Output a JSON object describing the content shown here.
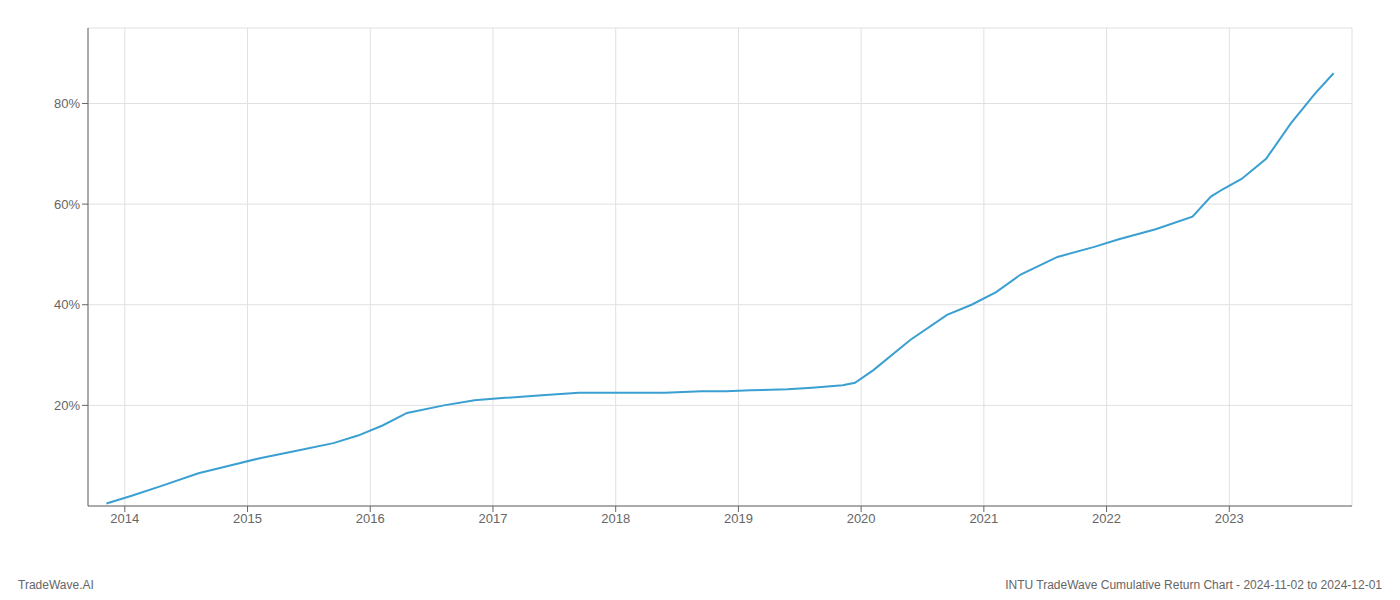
{
  "chart_data": {
    "type": "line",
    "x": [
      2013.85,
      2014.05,
      2014.3,
      2014.6,
      2014.85,
      2015.1,
      2015.4,
      2015.7,
      2015.9,
      2016.1,
      2016.3,
      2016.6,
      2016.85,
      2017.1,
      2017.4,
      2017.7,
      2017.9,
      2018.1,
      2018.4,
      2018.7,
      2018.9,
      2019.1,
      2019.4,
      2019.6,
      2019.85,
      2019.95,
      2020.1,
      2020.4,
      2020.7,
      2020.9,
      2021.1,
      2021.3,
      2021.6,
      2021.9,
      2022.1,
      2022.4,
      2022.7,
      2022.85,
      2022.95,
      2023.1,
      2023.3,
      2023.5,
      2023.7,
      2023.85
    ],
    "values": [
      0.5,
      2.0,
      4.0,
      6.5,
      8.0,
      9.5,
      11.0,
      12.5,
      14.0,
      16.0,
      18.5,
      20.0,
      21.0,
      21.5,
      22.0,
      22.5,
      22.5,
      22.5,
      22.5,
      22.8,
      22.8,
      23.0,
      23.2,
      23.5,
      24.0,
      24.5,
      27.0,
      33.0,
      38.0,
      40.0,
      42.5,
      46.0,
      49.5,
      51.5,
      53.0,
      55.0,
      57.5,
      61.5,
      63.0,
      65.0,
      69.0,
      76.0,
      82.0,
      86.0
    ],
    "color": "#3a9fd1",
    "xlim": [
      2013.7,
      2024.0
    ],
    "ylim": [
      0,
      95
    ],
    "xticks": [
      2014,
      2015,
      2016,
      2017,
      2018,
      2019,
      2020,
      2021,
      2022,
      2023
    ],
    "yticks": [
      {
        "value": 20,
        "label": "20%"
      },
      {
        "value": 40,
        "label": "40%"
      },
      {
        "value": 60,
        "label": "60%"
      },
      {
        "value": 80,
        "label": "80%"
      }
    ],
    "grid": true,
    "annotations": [
      "TradeWave.AI",
      "INTU TradeWave Cumulative Return Chart - 2024-11-02 to 2024-12-01"
    ]
  }
}
